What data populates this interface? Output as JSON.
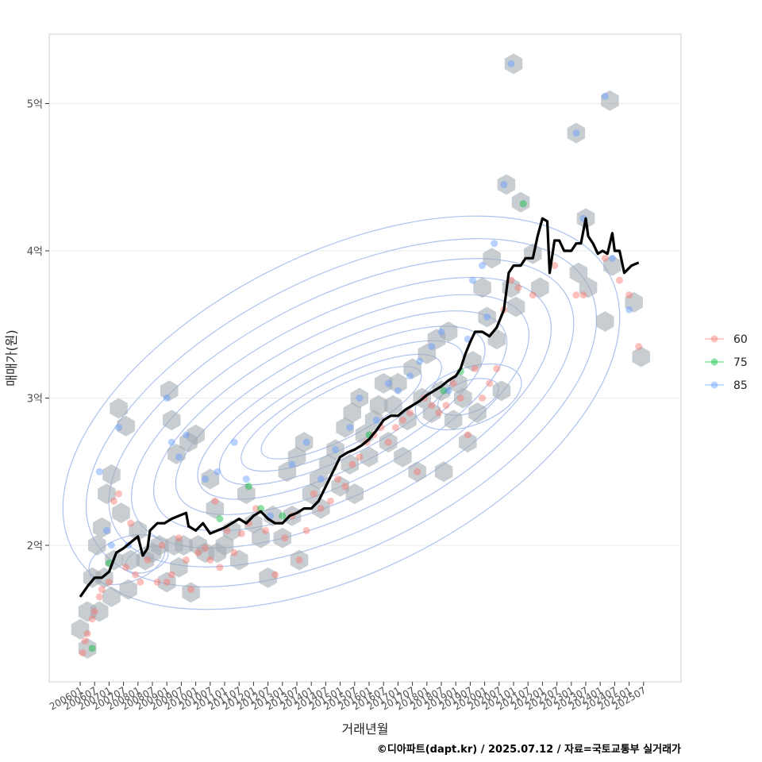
{
  "chart_data": {
    "type": "scatter",
    "xlabel": "거래년월",
    "ylabel": "매매가(원)",
    "caption": "©디아파트(dapt.kr) / 2025.07.12 / 자료=국토교통부 실거래가",
    "x_range": [
      "2006-01",
      "2025-07"
    ],
    "y_range": [
      1.1,
      5.5
    ],
    "y_ticks": [
      {
        "value": 2,
        "label": "2억"
      },
      {
        "value": 3,
        "label": "3억"
      },
      {
        "value": 4,
        "label": "4억"
      },
      {
        "value": 5,
        "label": "5억"
      }
    ],
    "x_ticks": [
      "200601",
      "200607",
      "200701",
      "200707",
      "200801",
      "200807",
      "200901",
      "200907",
      "201001",
      "201007",
      "201101",
      "201107",
      "201201",
      "201207",
      "201301",
      "201307",
      "201401",
      "201407",
      "201501",
      "201507",
      "201601",
      "201607",
      "201701",
      "201707",
      "201801",
      "201807",
      "201901",
      "201907",
      "202001",
      "202007",
      "202101",
      "202107",
      "202201",
      "202207",
      "202301",
      "202307",
      "202401",
      "202407",
      "202501",
      "202507"
    ],
    "grid": true,
    "legend_position": "right",
    "series": [
      {
        "name": "60",
        "color": "#F8766D",
        "points": [
          [
            "2006-02",
            1.27
          ],
          [
            "2006-03",
            1.35
          ],
          [
            "2006-04",
            1.4
          ],
          [
            "2006-06",
            1.5
          ],
          [
            "2006-07",
            1.55
          ],
          [
            "2006-09",
            1.65
          ],
          [
            "2006-10",
            1.7
          ],
          [
            "2007-01",
            1.75
          ],
          [
            "2007-03",
            2.3
          ],
          [
            "2007-05",
            2.35
          ],
          [
            "2007-08",
            1.85
          ],
          [
            "2007-10",
            2.15
          ],
          [
            "2007-12",
            1.8
          ],
          [
            "2008-02",
            1.75
          ],
          [
            "2008-05",
            1.9
          ],
          [
            "2008-09",
            1.75
          ],
          [
            "2008-11",
            2.0
          ],
          [
            "2009-01",
            1.75
          ],
          [
            "2009-03",
            1.8
          ],
          [
            "2009-06",
            2.05
          ],
          [
            "2009-09",
            1.9
          ],
          [
            "2009-11",
            1.7
          ],
          [
            "2010-02",
            1.95
          ],
          [
            "2010-05",
            1.98
          ],
          [
            "2010-07",
            1.9
          ],
          [
            "2010-09",
            2.3
          ],
          [
            "2010-11",
            1.85
          ],
          [
            "2011-02",
            2.1
          ],
          [
            "2011-05",
            1.95
          ],
          [
            "2011-08",
            2.08
          ],
          [
            "2011-11",
            2.15
          ],
          [
            "2012-02",
            2.25
          ],
          [
            "2012-06",
            2.1
          ],
          [
            "2012-10",
            1.8
          ],
          [
            "2013-02",
            2.05
          ],
          [
            "2013-05",
            2.2
          ],
          [
            "2013-08",
            1.9
          ],
          [
            "2013-11",
            2.1
          ],
          [
            "2014-02",
            2.35
          ],
          [
            "2014-05",
            2.25
          ],
          [
            "2014-09",
            2.3
          ],
          [
            "2014-12",
            2.45
          ],
          [
            "2015-03",
            2.4
          ],
          [
            "2015-06",
            2.55
          ],
          [
            "2015-09",
            2.6
          ],
          [
            "2015-12",
            2.7
          ],
          [
            "2016-03",
            2.75
          ],
          [
            "2016-06",
            2.8
          ],
          [
            "2016-09",
            2.7
          ],
          [
            "2016-12",
            2.8
          ],
          [
            "2017-03",
            2.85
          ],
          [
            "2017-06",
            2.9
          ],
          [
            "2017-09",
            2.5
          ],
          [
            "2017-12",
            3.0
          ],
          [
            "2018-03",
            2.95
          ],
          [
            "2018-06",
            2.9
          ],
          [
            "2018-09",
            2.95
          ],
          [
            "2018-12",
            3.1
          ],
          [
            "2019-03",
            3.0
          ],
          [
            "2019-06",
            2.75
          ],
          [
            "2019-09",
            3.2
          ],
          [
            "2019-12",
            3.0
          ],
          [
            "2020-03",
            3.1
          ],
          [
            "2020-06",
            3.2
          ],
          [
            "2020-09",
            3.6
          ],
          [
            "2020-12",
            3.8
          ],
          [
            "2021-03",
            3.75
          ],
          [
            "2021-09",
            3.7
          ],
          [
            "2022-06",
            3.9
          ],
          [
            "2023-03",
            3.7
          ],
          [
            "2023-06",
            3.7
          ],
          [
            "2024-03",
            3.95
          ],
          [
            "2024-09",
            3.8
          ],
          [
            "2025-01",
            3.7
          ],
          [
            "2025-05",
            3.35
          ]
        ]
      },
      {
        "name": "75",
        "color": "#00BA38",
        "points": [
          [
            "2006-06",
            1.3
          ],
          [
            "2007-01",
            1.88
          ],
          [
            "2010-11",
            2.18
          ],
          [
            "2011-11",
            2.4
          ],
          [
            "2012-04",
            2.25
          ],
          [
            "2013-01",
            2.2
          ],
          [
            "2016-01",
            2.75
          ],
          [
            "2018-08",
            3.05
          ],
          [
            "2019-03",
            3.18
          ],
          [
            "2021-05",
            4.32
          ]
        ]
      },
      {
        "name": "85",
        "color": "#619CFF",
        "points": [
          [
            "2006-09",
            2.5
          ],
          [
            "2006-12",
            2.1
          ],
          [
            "2007-02",
            2.0
          ],
          [
            "2007-05",
            2.8
          ],
          [
            "2007-09",
            2.0
          ],
          [
            "2009-01",
            3.0
          ],
          [
            "2009-03",
            2.7
          ],
          [
            "2009-06",
            2.6
          ],
          [
            "2009-09",
            2.75
          ],
          [
            "2010-05",
            2.45
          ],
          [
            "2010-10",
            2.5
          ],
          [
            "2011-05",
            2.7
          ],
          [
            "2011-10",
            2.45
          ],
          [
            "2012-08",
            2.2
          ],
          [
            "2013-05",
            2.55
          ],
          [
            "2013-11",
            2.7
          ],
          [
            "2014-05",
            2.45
          ],
          [
            "2014-11",
            2.65
          ],
          [
            "2015-05",
            2.8
          ],
          [
            "2015-09",
            3.0
          ],
          [
            "2016-04",
            2.85
          ],
          [
            "2016-09",
            3.1
          ],
          [
            "2017-01",
            3.05
          ],
          [
            "2017-06",
            3.15
          ],
          [
            "2017-10",
            3.25
          ],
          [
            "2018-03",
            3.35
          ],
          [
            "2018-07",
            3.45
          ],
          [
            "2018-10",
            3.05
          ],
          [
            "2019-06",
            3.4
          ],
          [
            "2019-08",
            3.8
          ],
          [
            "2019-12",
            3.9
          ],
          [
            "2020-02",
            3.55
          ],
          [
            "2020-05",
            4.05
          ],
          [
            "2020-09",
            4.45
          ],
          [
            "2020-12",
            5.27
          ],
          [
            "2023-03",
            4.8
          ],
          [
            "2023-06",
            4.22
          ],
          [
            "2024-03",
            5.05
          ],
          [
            "2024-06",
            3.95
          ],
          [
            "2025-01",
            3.6
          ]
        ]
      }
    ],
    "hexbins": [
      [
        "2006-01",
        1.43
      ],
      [
        "2006-04",
        1.3
      ],
      [
        "2006-04",
        1.55
      ],
      [
        "2006-06",
        1.78
      ],
      [
        "2006-08",
        2.0
      ],
      [
        "2006-09",
        1.55
      ],
      [
        "2006-10",
        2.12
      ],
      [
        "2006-11",
        1.78
      ],
      [
        "2006-12",
        2.35
      ],
      [
        "2007-02",
        2.48
      ],
      [
        "2007-02",
        1.65
      ],
      [
        "2007-03",
        1.9
      ],
      [
        "2007-05",
        2.93
      ],
      [
        "2007-06",
        2.22
      ],
      [
        "2007-08",
        2.81
      ],
      [
        "2007-09",
        1.7
      ],
      [
        "2007-10",
        1.9
      ],
      [
        "2008-01",
        2.1
      ],
      [
        "2008-04",
        1.9
      ],
      [
        "2008-07",
        1.95
      ],
      [
        "2008-10",
        2.0
      ],
      [
        "2009-01",
        1.75
      ],
      [
        "2009-02",
        3.05
      ],
      [
        "2009-03",
        2.85
      ],
      [
        "2009-04",
        2.0
      ],
      [
        "2009-05",
        2.62
      ],
      [
        "2009-06",
        1.85
      ],
      [
        "2009-08",
        2.0
      ],
      [
        "2009-10",
        2.7
      ],
      [
        "2009-11",
        1.68
      ],
      [
        "2010-01",
        2.75
      ],
      [
        "2010-02",
        2.0
      ],
      [
        "2010-05",
        1.95
      ],
      [
        "2010-07",
        2.45
      ],
      [
        "2010-09",
        2.25
      ],
      [
        "2010-10",
        1.95
      ],
      [
        "2011-01",
        2.0
      ],
      [
        "2011-04",
        2.1
      ],
      [
        "2011-07",
        1.9
      ],
      [
        "2011-10",
        2.35
      ],
      [
        "2012-01",
        2.15
      ],
      [
        "2012-04",
        2.05
      ],
      [
        "2012-07",
        1.78
      ],
      [
        "2012-09",
        2.2
      ],
      [
        "2013-01",
        2.05
      ],
      [
        "2013-03",
        2.5
      ],
      [
        "2013-05",
        2.2
      ],
      [
        "2013-07",
        2.6
      ],
      [
        "2013-08",
        1.9
      ],
      [
        "2013-10",
        2.7
      ],
      [
        "2014-01",
        2.35
      ],
      [
        "2014-04",
        2.45
      ],
      [
        "2014-05",
        2.25
      ],
      [
        "2014-08",
        2.55
      ],
      [
        "2014-11",
        2.65
      ],
      [
        "2015-01",
        2.4
      ],
      [
        "2015-03",
        2.8
      ],
      [
        "2015-05",
        2.55
      ],
      [
        "2015-06",
        2.9
      ],
      [
        "2015-07",
        2.35
      ],
      [
        "2015-09",
        3.0
      ],
      [
        "2015-11",
        2.75
      ],
      [
        "2016-01",
        2.6
      ],
      [
        "2016-03",
        2.85
      ],
      [
        "2016-05",
        2.95
      ],
      [
        "2016-07",
        3.1
      ],
      [
        "2016-09",
        2.7
      ],
      [
        "2016-11",
        2.95
      ],
      [
        "2017-01",
        3.1
      ],
      [
        "2017-03",
        2.6
      ],
      [
        "2017-05",
        2.85
      ],
      [
        "2017-07",
        3.2
      ],
      [
        "2017-09",
        2.5
      ],
      [
        "2017-11",
        3.0
      ],
      [
        "2018-01",
        3.3
      ],
      [
        "2018-03",
        2.9
      ],
      [
        "2018-05",
        3.4
      ],
      [
        "2018-07",
        3.05
      ],
      [
        "2018-08",
        2.5
      ],
      [
        "2018-10",
        3.45
      ],
      [
        "2018-12",
        2.85
      ],
      [
        "2019-02",
        3.1
      ],
      [
        "2019-04",
        3.0
      ],
      [
        "2019-06",
        2.7
      ],
      [
        "2019-08",
        3.25
      ],
      [
        "2019-10",
        2.9
      ],
      [
        "2019-12",
        3.75
      ],
      [
        "2020-02",
        3.55
      ],
      [
        "2020-04",
        3.95
      ],
      [
        "2020-06",
        3.4
      ],
      [
        "2020-08",
        3.05
      ],
      [
        "2020-10",
        4.45
      ],
      [
        "2020-12",
        3.75
      ],
      [
        "2021-01",
        5.27
      ],
      [
        "2021-02",
        3.62
      ],
      [
        "2021-04",
        4.33
      ],
      [
        "2021-09",
        3.98
      ],
      [
        "2021-12",
        3.75
      ],
      [
        "2023-03",
        4.8
      ],
      [
        "2023-04",
        3.85
      ],
      [
        "2023-07",
        4.22
      ],
      [
        "2023-08",
        3.75
      ],
      [
        "2024-03",
        3.52
      ],
      [
        "2024-05",
        5.02
      ],
      [
        "2024-06",
        3.9
      ],
      [
        "2025-03",
        3.65
      ],
      [
        "2025-06",
        3.28
      ]
    ],
    "trend_line": [
      [
        "2006-01",
        1.65
      ],
      [
        "2006-04",
        1.72
      ],
      [
        "2006-07",
        1.78
      ],
      [
        "2006-10",
        1.78
      ],
      [
        "2007-01",
        1.82
      ],
      [
        "2007-04",
        1.95
      ],
      [
        "2007-07",
        1.98
      ],
      [
        "2007-10",
        2.02
      ],
      [
        "2008-01",
        2.06
      ],
      [
        "2008-03",
        1.93
      ],
      [
        "2008-05",
        1.98
      ],
      [
        "2008-06",
        2.1
      ],
      [
        "2008-09",
        2.15
      ],
      [
        "2008-12",
        2.15
      ],
      [
        "2009-03",
        2.18
      ],
      [
        "2009-06",
        2.2
      ],
      [
        "2009-09",
        2.22
      ],
      [
        "2009-10",
        2.13
      ],
      [
        "2010-01",
        2.1
      ],
      [
        "2010-04",
        2.15
      ],
      [
        "2010-07",
        2.08
      ],
      [
        "2010-10",
        2.1
      ],
      [
        "2011-01",
        2.12
      ],
      [
        "2011-04",
        2.15
      ],
      [
        "2011-07",
        2.18
      ],
      [
        "2011-10",
        2.15
      ],
      [
        "2012-01",
        2.2
      ],
      [
        "2012-04",
        2.23
      ],
      [
        "2012-07",
        2.18
      ],
      [
        "2012-10",
        2.15
      ],
      [
        "2013-01",
        2.15
      ],
      [
        "2013-04",
        2.2
      ],
      [
        "2013-07",
        2.22
      ],
      [
        "2013-10",
        2.25
      ],
      [
        "2014-01",
        2.25
      ],
      [
        "2014-04",
        2.3
      ],
      [
        "2014-07",
        2.4
      ],
      [
        "2014-10",
        2.5
      ],
      [
        "2015-01",
        2.6
      ],
      [
        "2015-04",
        2.63
      ],
      [
        "2015-07",
        2.65
      ],
      [
        "2015-10",
        2.68
      ],
      [
        "2016-01",
        2.72
      ],
      [
        "2016-04",
        2.78
      ],
      [
        "2016-07",
        2.85
      ],
      [
        "2016-10",
        2.88
      ],
      [
        "2017-01",
        2.88
      ],
      [
        "2017-04",
        2.92
      ],
      [
        "2017-07",
        2.95
      ],
      [
        "2017-10",
        2.98
      ],
      [
        "2018-01",
        3.02
      ],
      [
        "2018-04",
        3.05
      ],
      [
        "2018-07",
        3.08
      ],
      [
        "2018-10",
        3.12
      ],
      [
        "2019-01",
        3.15
      ],
      [
        "2019-03",
        3.2
      ],
      [
        "2019-05",
        3.3
      ],
      [
        "2019-07",
        3.38
      ],
      [
        "2019-09",
        3.45
      ],
      [
        "2019-12",
        3.45
      ],
      [
        "2020-03",
        3.42
      ],
      [
        "2020-06",
        3.48
      ],
      [
        "2020-09",
        3.6
      ],
      [
        "2020-11",
        3.85
      ],
      [
        "2021-01",
        3.9
      ],
      [
        "2021-04",
        3.9
      ],
      [
        "2021-06",
        3.95
      ],
      [
        "2021-09",
        3.95
      ],
      [
        "2021-11",
        4.1
      ],
      [
        "2022-01",
        4.22
      ],
      [
        "2022-03",
        4.2
      ],
      [
        "2022-04",
        3.85
      ],
      [
        "2022-06",
        4.07
      ],
      [
        "2022-08",
        4.07
      ],
      [
        "2022-10",
        4.0
      ],
      [
        "2023-01",
        4.0
      ],
      [
        "2023-03",
        4.05
      ],
      [
        "2023-05",
        4.05
      ],
      [
        "2023-07",
        4.22
      ],
      [
        "2023-08",
        4.1
      ],
      [
        "2023-10",
        4.05
      ],
      [
        "2023-12",
        3.98
      ],
      [
        "2024-02",
        4.0
      ],
      [
        "2024-04",
        3.98
      ],
      [
        "2024-06",
        4.12
      ],
      [
        "2024-07",
        4.0
      ],
      [
        "2024-09",
        4.0
      ],
      [
        "2024-11",
        3.85
      ],
      [
        "2025-02",
        3.9
      ],
      [
        "2025-05",
        3.92
      ]
    ]
  }
}
